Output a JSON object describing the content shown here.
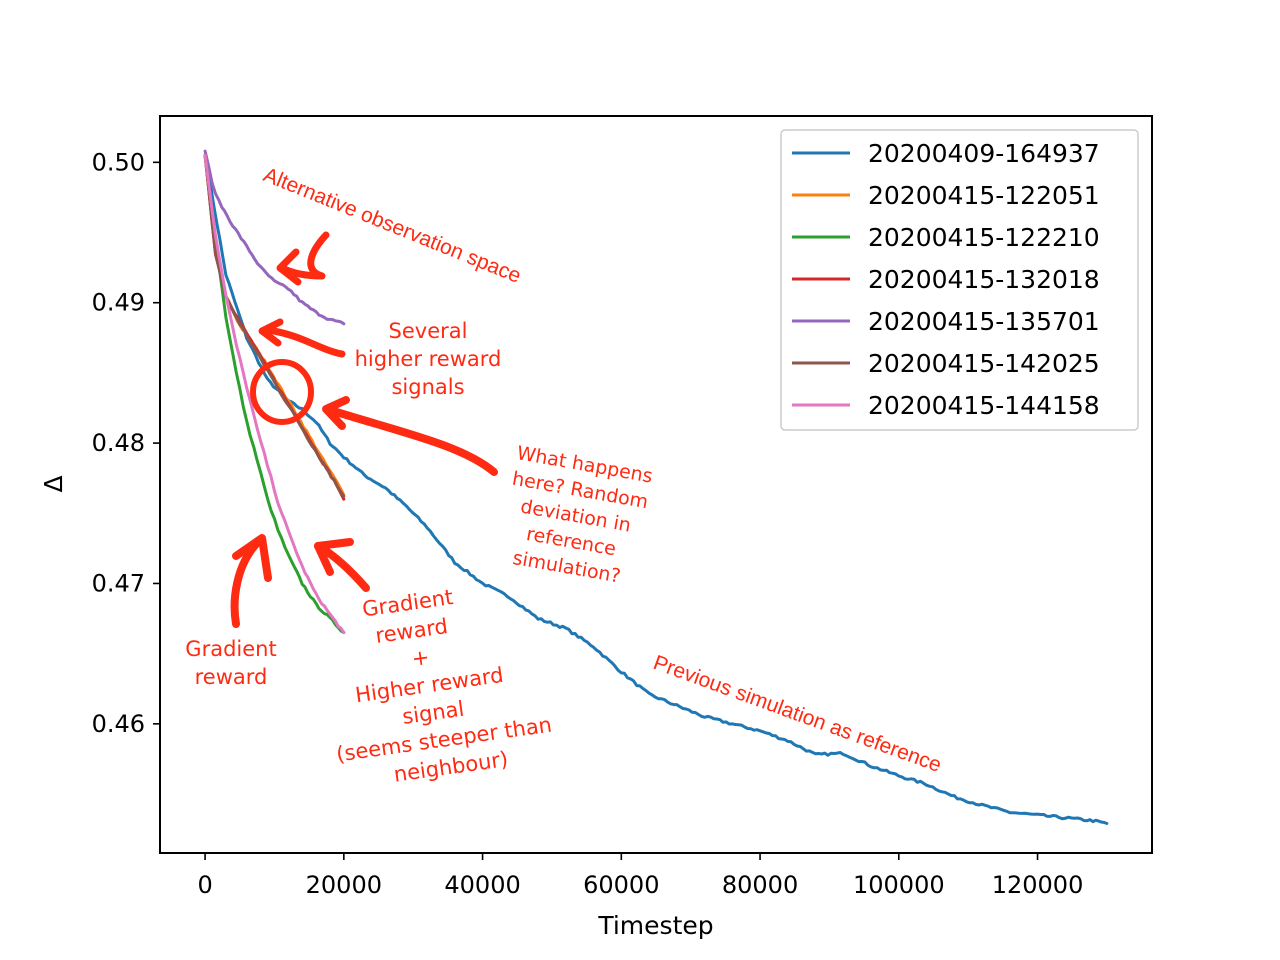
{
  "chart_data": {
    "type": "line",
    "title": "",
    "xlabel": "Timestep",
    "ylabel": "Δ",
    "xlim": [
      -6500,
      136500
    ],
    "ylim": [
      0.4508,
      0.5033
    ],
    "xticks": [
      0,
      20000,
      40000,
      60000,
      80000,
      100000,
      120000
    ],
    "xtick_labels": [
      "0",
      "20000",
      "40000",
      "60000",
      "80000",
      "100000",
      "120000"
    ],
    "yticks": [
      0.46,
      0.47,
      0.48,
      0.49,
      0.5
    ],
    "ytick_labels": [
      "0.46",
      "0.47",
      "0.48",
      "0.49",
      "0.50"
    ],
    "grid": false,
    "legend_position": "top-right",
    "series": [
      {
        "name": "20200409-164937",
        "color": "#1f77b4",
        "x": [
          0,
          3000,
          6000,
          9000,
          12000,
          14000,
          16000,
          18000,
          20000,
          23000,
          26000,
          29000,
          32000,
          36000,
          40000,
          44000,
          48000,
          52000,
          56000,
          60000,
          64000,
          68000,
          72000,
          76000,
          80000,
          84000,
          88000,
          92000,
          96000,
          100000,
          104000,
          108000,
          112000,
          116000,
          120000,
          124000,
          128000,
          130000
        ],
        "y": [
          0.5005,
          0.492,
          0.4875,
          0.4845,
          0.483,
          0.4824,
          0.4815,
          0.48,
          0.479,
          0.4777,
          0.4768,
          0.4755,
          0.474,
          0.4715,
          0.47,
          0.469,
          0.4675,
          0.4668,
          0.4655,
          0.4637,
          0.4621,
          0.4613,
          0.4605,
          0.46,
          0.4595,
          0.4588,
          0.4578,
          0.4579,
          0.457,
          0.4563,
          0.4557,
          0.4548,
          0.4542,
          0.4537,
          0.4535,
          0.4533,
          0.4531,
          0.4529
        ]
      },
      {
        "name": "20200415-122051",
        "color": "#ff7f0e",
        "x": [
          0,
          1500,
          3000,
          5000,
          7000,
          9000,
          11000,
          13000,
          15000,
          17000,
          19000,
          20000
        ],
        "y": [
          0.5005,
          0.4935,
          0.4905,
          0.4884,
          0.487,
          0.4855,
          0.4838,
          0.4822,
          0.4805,
          0.4788,
          0.4772,
          0.4763
        ]
      },
      {
        "name": "20200415-122210",
        "color": "#2ca02c",
        "x": [
          0,
          1500,
          3000,
          4500,
          6000,
          7500,
          9000,
          10500,
          12000,
          14000,
          16000,
          18000,
          20000
        ],
        "y": [
          0.5005,
          0.4945,
          0.489,
          0.485,
          0.4815,
          0.4788,
          0.476,
          0.4738,
          0.472,
          0.47,
          0.4685,
          0.4675,
          0.4665
        ]
      },
      {
        "name": "20200415-132018",
        "color": "#d62728",
        "x": [
          0,
          1500,
          3000,
          5000,
          7000,
          9000,
          11000,
          13000,
          15000,
          17000,
          19000,
          20000
        ],
        "y": [
          0.5005,
          0.4935,
          0.4905,
          0.4886,
          0.487,
          0.4853,
          0.4836,
          0.482,
          0.4803,
          0.4786,
          0.477,
          0.476
        ]
      },
      {
        "name": "20200415-135701",
        "color": "#9467bd",
        "x": [
          0,
          1000,
          2000,
          4000,
          6000,
          8000,
          10000,
          12000,
          14000,
          16000,
          18000,
          20000
        ],
        "y": [
          0.5008,
          0.4985,
          0.4972,
          0.4955,
          0.494,
          0.4925,
          0.4915,
          0.491,
          0.49,
          0.4893,
          0.4888,
          0.4885
        ]
      },
      {
        "name": "20200415-142025",
        "color": "#8c564b",
        "x": [
          0,
          1500,
          3000,
          5000,
          7000,
          9000,
          11000,
          13000,
          15000,
          17000,
          19000,
          20000
        ],
        "y": [
          0.5005,
          0.4935,
          0.4904,
          0.4885,
          0.4868,
          0.4852,
          0.4835,
          0.4819,
          0.4802,
          0.4786,
          0.477,
          0.4762
        ]
      },
      {
        "name": "20200415-144158",
        "color": "#e377c2",
        "x": [
          0,
          1500,
          3000,
          4500,
          6000,
          7500,
          9000,
          10500,
          12000,
          14000,
          16000,
          18000,
          20000
        ],
        "y": [
          0.5005,
          0.4948,
          0.4905,
          0.487,
          0.484,
          0.481,
          0.4784,
          0.4758,
          0.4737,
          0.4712,
          0.4692,
          0.4678,
          0.4665
        ]
      }
    ]
  },
  "annotations": {
    "alt_obs": "Alternative observation space",
    "several_line1": "Several",
    "several_line2": "higher reward",
    "several_line3": "signals",
    "what_line1": "What happens",
    "what_line2": "here? Random",
    "what_line3": "deviation in",
    "what_line4": "reference",
    "what_line5": "simulation?",
    "grad_line1": "Gradient",
    "grad_line2": "reward",
    "grad_higher_line1": "Gradient",
    "grad_higher_line2": "reward",
    "grad_higher_line3": "+",
    "grad_higher_line4": "Higher reward",
    "grad_higher_line5": "signal",
    "grad_higher_line6": "(seems steeper than",
    "grad_higher_line7": "neighbour)",
    "previous": "Previous simulation as reference",
    "color": "#ff2a12"
  }
}
